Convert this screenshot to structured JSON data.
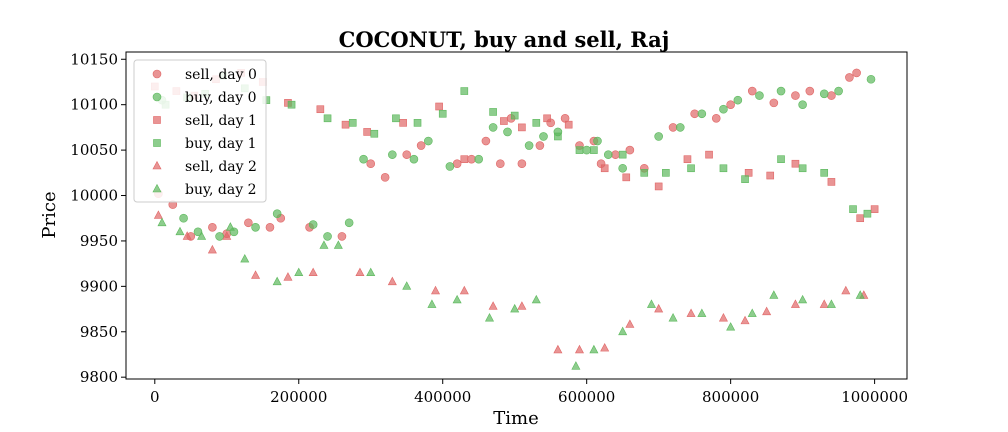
{
  "chart_data": {
    "type": "scatter",
    "title": "COCONUT, buy and sell, Raj",
    "xlabel": "Time",
    "ylabel": "Price",
    "xlim": [
      -40000,
      1045000
    ],
    "ylim": [
      9798,
      10158
    ],
    "xticks": [
      0,
      200000,
      400000,
      600000,
      800000,
      1000000
    ],
    "xtick_labels": [
      "0",
      "200000",
      "400000",
      "600000",
      "800000",
      "1000000"
    ],
    "yticks": [
      9800,
      9850,
      9900,
      9950,
      10000,
      10050,
      10100,
      10150
    ],
    "ytick_labels": [
      "9800",
      "9850",
      "9900",
      "9950",
      "10000",
      "10050",
      "10100",
      "10150"
    ],
    "grid": false,
    "legend_position": "top-left",
    "colors": {
      "sell": "#e06666",
      "buy": "#5cb85c"
    },
    "series": [
      {
        "name": "sell, day 0",
        "side": "sell",
        "marker": "circle",
        "x": [
          5000,
          25000,
          50000,
          80000,
          100000,
          130000,
          160000,
          175000,
          215000,
          260000,
          300000,
          320000,
          350000,
          370000,
          420000,
          440000,
          460000,
          480000,
          495000,
          510000,
          535000,
          550000,
          570000,
          590000,
          610000,
          620000,
          640000,
          660000,
          680000,
          720000,
          750000,
          780000,
          800000,
          830000,
          860000,
          890000,
          910000,
          940000,
          965000,
          975000
        ],
        "y": [
          10002,
          9990,
          9955,
          9965,
          9958,
          9970,
          9965,
          9975,
          9965,
          9955,
          10035,
          10020,
          10045,
          10055,
          10035,
          10040,
          10060,
          10035,
          10085,
          10035,
          10055,
          10080,
          10085,
          10055,
          10060,
          10035,
          10045,
          10050,
          10030,
          10075,
          10090,
          10085,
          10100,
          10115,
          10102,
          10110,
          10115,
          10110,
          10130,
          10135
        ]
      },
      {
        "name": "buy, day 0",
        "side": "buy",
        "marker": "circle",
        "x": [
          10000,
          40000,
          60000,
          90000,
          110000,
          140000,
          170000,
          220000,
          240000,
          270000,
          290000,
          330000,
          360000,
          380000,
          410000,
          450000,
          470000,
          490000,
          520000,
          540000,
          560000,
          600000,
          615000,
          630000,
          650000,
          700000,
          730000,
          760000,
          790000,
          810000,
          840000,
          870000,
          900000,
          930000,
          950000,
          995000
        ],
        "y": [
          10105,
          9975,
          9960,
          9955,
          9960,
          9965,
          9980,
          9968,
          9955,
          9970,
          10040,
          10045,
          10040,
          10060,
          10032,
          10040,
          10075,
          10070,
          10055,
          10065,
          10070,
          10050,
          10060,
          10045,
          10030,
          10065,
          10075,
          10090,
          10095,
          10105,
          10110,
          10115,
          10100,
          10112,
          10115,
          10128
        ]
      },
      {
        "name": "sell, day 1",
        "side": "sell",
        "marker": "square",
        "x": [
          0,
          30000,
          55000,
          85000,
          120000,
          150000,
          185000,
          230000,
          265000,
          295000,
          345000,
          395000,
          430000,
          485000,
          510000,
          545000,
          575000,
          625000,
          655000,
          700000,
          740000,
          770000,
          825000,
          855000,
          890000,
          940000,
          980000,
          1000000
        ],
        "y": [
          10120,
          10115,
          10110,
          10128,
          10135,
          10125,
          10102,
          10095,
          10078,
          10070,
          10080,
          10098,
          10040,
          10082,
          10075,
          10085,
          10078,
          10030,
          10020,
          10010,
          10040,
          10045,
          10025,
          10022,
          10035,
          10015,
          9975,
          9985
        ]
      },
      {
        "name": "buy, day 1",
        "side": "buy",
        "marker": "square",
        "x": [
          15000,
          45000,
          70000,
          95000,
          125000,
          155000,
          190000,
          240000,
          275000,
          305000,
          335000,
          365000,
          400000,
          430000,
          470000,
          500000,
          530000,
          560000,
          590000,
          610000,
          650000,
          680000,
          710000,
          745000,
          790000,
          820000,
          870000,
          900000,
          930000,
          970000,
          990000
        ],
        "y": [
          10100,
          10108,
          10112,
          10132,
          10118,
          10105,
          10100,
          10085,
          10080,
          10068,
          10085,
          10080,
          10090,
          10115,
          10092,
          10088,
          10080,
          10065,
          10050,
          10050,
          10045,
          10025,
          10025,
          10030,
          10030,
          10018,
          10040,
          10030,
          10025,
          9985,
          9980
        ]
      },
      {
        "name": "sell, day 2",
        "side": "sell",
        "marker": "triangle",
        "x": [
          5000,
          45000,
          80000,
          100000,
          140000,
          185000,
          220000,
          285000,
          330000,
          390000,
          430000,
          470000,
          510000,
          560000,
          590000,
          625000,
          660000,
          700000,
          745000,
          790000,
          820000,
          850000,
          890000,
          930000,
          960000,
          985000
        ],
        "y": [
          9978,
          9955,
          9940,
          9955,
          9912,
          9910,
          9915,
          9915,
          9905,
          9895,
          9895,
          9878,
          9878,
          9830,
          9830,
          9832,
          9858,
          9875,
          9870,
          9865,
          9862,
          9872,
          9880,
          9880,
          9895,
          9890
        ]
      },
      {
        "name": "buy, day 2",
        "side": "buy",
        "marker": "triangle",
        "x": [
          10000,
          35000,
          65000,
          105000,
          125000,
          170000,
          200000,
          235000,
          255000,
          300000,
          350000,
          385000,
          420000,
          465000,
          500000,
          530000,
          585000,
          610000,
          650000,
          690000,
          720000,
          760000,
          800000,
          830000,
          860000,
          900000,
          940000,
          980000
        ],
        "y": [
          9970,
          9960,
          9955,
          9965,
          9930,
          9905,
          9915,
          9945,
          9945,
          9915,
          9900,
          9880,
          9885,
          9865,
          9875,
          9885,
          9812,
          9830,
          9850,
          9880,
          9865,
          9870,
          9855,
          9870,
          9890,
          9885,
          9880,
          9890
        ]
      }
    ]
  }
}
